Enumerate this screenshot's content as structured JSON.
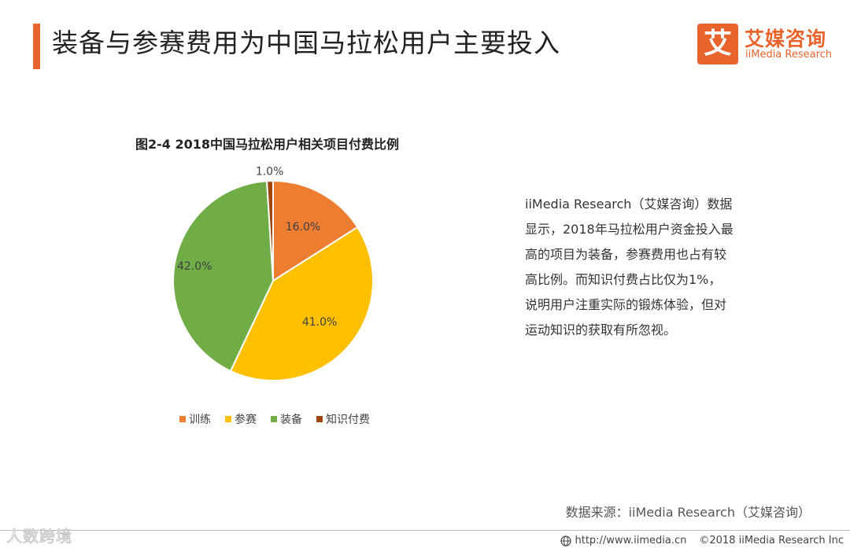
{
  "header": {
    "title": "装备与参赛费用为中国马拉松用户主要投入",
    "logo_mark": "艾",
    "logo_cn": "艾媒咨询",
    "logo_en": "iiMedia Research"
  },
  "chart_data": {
    "type": "pie",
    "title": "图2-4 2018中国马拉松用户相关项目付费比例",
    "categories": [
      "训练",
      "参赛",
      "装备",
      "知识付费"
    ],
    "values": [
      16.0,
      41.0,
      42.0,
      1.0
    ],
    "value_labels": [
      "16.0%",
      "41.0%",
      "42.0%",
      "1.0%"
    ],
    "colors": [
      "#ed7d31",
      "#ffc000",
      "#70ad47",
      "#9e480e"
    ],
    "legend_position": "bottom",
    "start": "12 o'clock, clockwise"
  },
  "description": {
    "lines": [
      "iiMedia Research（艾媒咨询）数据",
      "显示，2018年马拉松用户资金投入最",
      "高的项目为装备，参赛费用也占有较",
      "高比例。而知识付费占比仅为1%，",
      "说明用户注重实际的锻炼体验，但对",
      "运动知识的获取有所忽视。"
    ]
  },
  "source": "数据来源：iiMedia Research（艾媒咨询）",
  "footer": {
    "url": "http://www.iimedia.cn",
    "copyright": "©2018  iiMedia Research  Inc",
    "watermark": "人数跨境"
  }
}
